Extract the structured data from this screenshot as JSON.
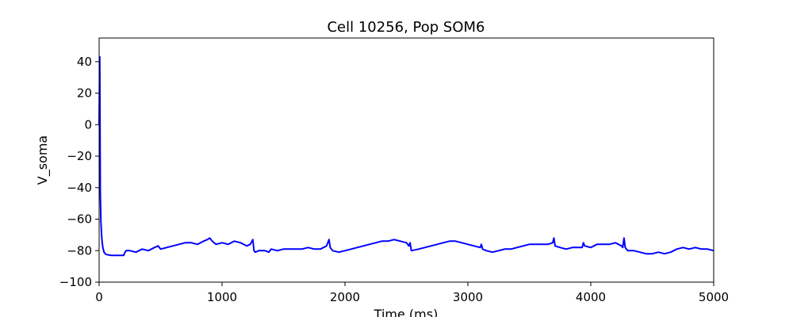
{
  "chart_data": {
    "type": "line",
    "title": "Cell 10256, Pop SOM6",
    "xlabel": "Time (ms)",
    "ylabel": "V_soma",
    "xlim": [
      0,
      5000
    ],
    "ylim": [
      -100,
      55
    ],
    "xticks": [
      0,
      1000,
      2000,
      3000,
      4000,
      5000
    ],
    "yticks": [
      -100,
      -80,
      -60,
      -40,
      -20,
      0,
      20,
      40
    ],
    "grid": false,
    "series": [
      {
        "color": "#0000ff",
        "x": [
          0,
          5,
          10,
          15,
          20,
          25,
          30,
          40,
          50,
          60,
          80,
          100,
          130,
          160,
          200,
          210,
          220,
          250,
          300,
          350,
          400,
          450,
          480,
          500,
          550,
          600,
          650,
          700,
          750,
          800,
          850,
          880,
          900,
          920,
          950,
          1000,
          1050,
          1100,
          1150,
          1200,
          1230,
          1250,
          1260,
          1270,
          1300,
          1350,
          1380,
          1400,
          1450,
          1500,
          1550,
          1600,
          1650,
          1700,
          1750,
          1800,
          1850,
          1870,
          1880,
          1890,
          1900,
          1950,
          2000,
          2050,
          2100,
          2150,
          2200,
          2250,
          2300,
          2350,
          2400,
          2450,
          2500,
          2520,
          2530,
          2540,
          2600,
          2650,
          2700,
          2750,
          2800,
          2850,
          2900,
          2950,
          3000,
          3050,
          3100,
          3110,
          3120,
          3150,
          3200,
          3250,
          3300,
          3350,
          3400,
          3450,
          3500,
          3550,
          3600,
          3650,
          3690,
          3700,
          3710,
          3750,
          3800,
          3850,
          3900,
          3930,
          3940,
          3950,
          4000,
          4050,
          4100,
          4150,
          4200,
          4250,
          4260,
          4270,
          4280,
          4300,
          4350,
          4400,
          4450,
          4500,
          4550,
          4600,
          4650,
          4700,
          4750,
          4800,
          4850,
          4900,
          4950,
          5000
        ],
        "y": [
          0,
          43,
          -44,
          -62,
          -70,
          -75,
          -78,
          -81,
          -82,
          -82.5,
          -82.8,
          -83,
          -83,
          -83,
          -83,
          -81,
          -80,
          -80,
          -81,
          -79,
          -80,
          -78,
          -77,
          -79,
          -78,
          -77,
          -76,
          -75,
          -75,
          -76,
          -74,
          -73,
          -72,
          -74,
          -76,
          -75,
          -76,
          -74,
          -75,
          -77,
          -76,
          -73,
          -80,
          -81,
          -80,
          -80,
          -81,
          -79,
          -80,
          -79,
          -79,
          -79,
          -79,
          -78,
          -79,
          -79,
          -77,
          -73,
          -78,
          -79,
          -80,
          -81,
          -80,
          -79,
          -78,
          -77,
          -76,
          -75,
          -74,
          -74,
          -73,
          -74,
          -75,
          -77,
          -75,
          -80,
          -79,
          -78,
          -77,
          -76,
          -75,
          -74,
          -74,
          -75,
          -76,
          -77,
          -78,
          -76,
          -79,
          -80,
          -81,
          -80,
          -79,
          -79,
          -78,
          -77,
          -76,
          -76,
          -76,
          -76,
          -75,
          -72,
          -77,
          -78,
          -79,
          -78,
          -78,
          -78,
          -75,
          -77,
          -78,
          -76,
          -76,
          -76,
          -75,
          -77,
          -78,
          -72,
          -78,
          -80,
          -80,
          -81,
          -82,
          -82,
          -81,
          -82,
          -81,
          -79,
          -78,
          -79,
          -78,
          -79,
          -79,
          -80
        ]
      }
    ]
  }
}
